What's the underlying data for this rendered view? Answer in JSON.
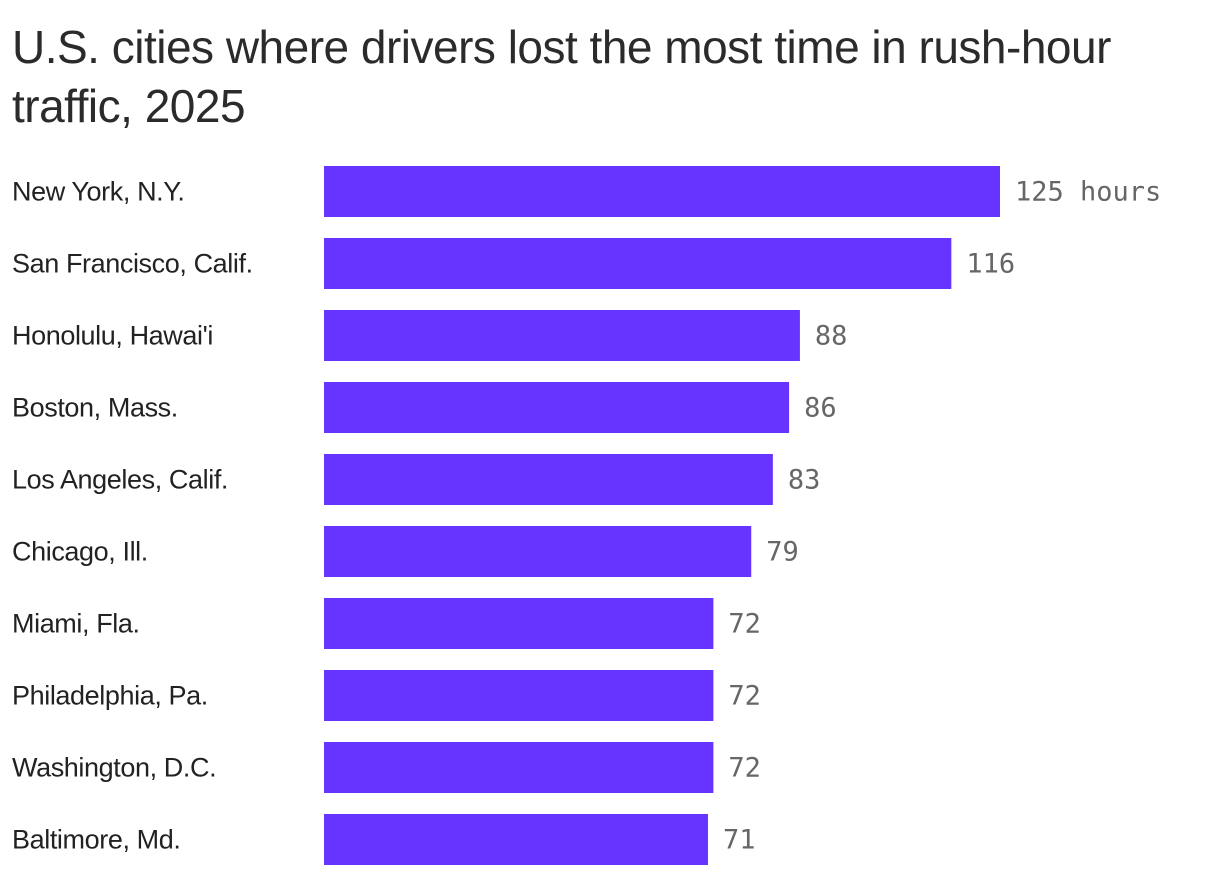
{
  "chart_data": {
    "type": "bar",
    "orientation": "horizontal",
    "title": "U.S. cities where drivers lost the most time in rush-hour traffic, 2025",
    "unit_label": "hours",
    "categories": [
      "New York, N.Y.",
      "San Francisco, Calif.",
      "Honolulu, Hawai'i",
      "Boston, Mass.",
      "Los Angeles, Calif.",
      "Chicago, Ill.",
      "Miami, Fla.",
      "Philadelphia, Pa.",
      "Washington, D.C.",
      "Baltimore, Md."
    ],
    "values": [
      125,
      116,
      88,
      86,
      83,
      79,
      72,
      72,
      72,
      71
    ],
    "bar_color": "#6633ff",
    "grid": false,
    "legend": "none"
  }
}
